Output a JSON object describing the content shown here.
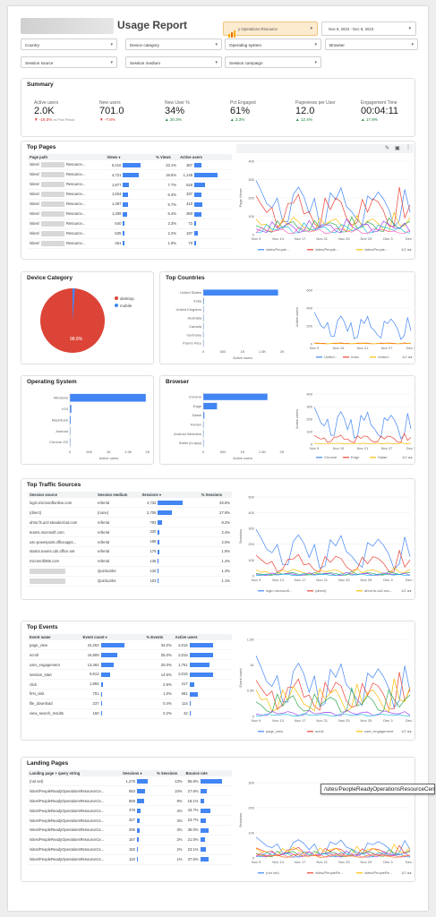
{
  "report": {
    "title": "Usage Report",
    "datasource": "y Operations Resource",
    "date_range": "Nov 9, 2023 - Dec 8, 2023"
  },
  "filters": [
    "Country",
    "Device category",
    "Operating system",
    "Browser",
    "Session source",
    "Session medium",
    "Session campaign"
  ],
  "summary": {
    "title": "Summary",
    "kpis": [
      {
        "label": "Active users",
        "value": "2.0K",
        "delta": "-16.5%",
        "dir": "down",
        "note": "vs Prior Period"
      },
      {
        "label": "New users",
        "value": "701.0",
        "delta": "-7.8%",
        "dir": "down"
      },
      {
        "label": "New User %",
        "value": "34%",
        "delta": "20.3%",
        "dir": "up"
      },
      {
        "label": "Pct Engaged",
        "value": "61%",
        "delta": "3.3%",
        "dir": "up"
      },
      {
        "label": "Pageviews per User",
        "value": "12.0",
        "delta": "12.4%",
        "dir": "up"
      },
      {
        "label": "Engagement Time",
        "value": "00:04:11",
        "delta": "17.9%",
        "dir": "up"
      }
    ]
  },
  "colors": {
    "blue": "#4285f4",
    "red": "#ea4335",
    "yellow": "#fbbc04",
    "green": "#34a853",
    "purple": "#a142f4",
    "teal": "#24c1e0",
    "pink": "#ff63b8",
    "orange": "#fa7b17",
    "pie_red": "#db4437"
  },
  "top_pages": {
    "title": "Top Pages",
    "headers": [
      "Page path",
      "Views",
      "% Views",
      "Active users"
    ],
    "rows": [
      [
        "/sites/",
        "Resource...",
        "5,410",
        "23.1%",
        "367"
      ],
      [
        "/sites/",
        "Resource...",
        "4,721",
        "19.5%",
        "1,145"
      ],
      [
        "/sites/",
        "Resource...",
        "1,877",
        "7.7%",
        "526"
      ],
      [
        "/sites/",
        "Resource...",
        "1,504",
        "6.3%",
        "337"
      ],
      [
        "/sites/",
        "Resource...",
        "1,387",
        "5.7%",
        "410"
      ],
      [
        "/sites/",
        "Resource...",
        "1,309",
        "5.4%",
        "360"
      ],
      [
        "/sites/",
        "Resource...",
        "540",
        "2.3%",
        "72"
      ],
      [
        "/sites/",
        "Resource...",
        "535",
        "2.2%",
        "187"
      ],
      [
        "/sites/",
        "Resource...",
        "451",
        "1.9%",
        "70"
      ]
    ],
    "legend": [
      "/sites/People...",
      "/sites/People...",
      "/sites/People..."
    ],
    "ylabel": "Page Views"
  },
  "x_dates": [
    "Nov 9",
    "Nov 13",
    "Nov 17",
    "Nov 21",
    "Nov 25",
    "Nov 29",
    "Dec 3",
    "Dec 7"
  ],
  "x_dates2": [
    "Nov 9",
    "Nov 15",
    "Nov 21",
    "Nov 27",
    "Dec 3"
  ],
  "page_indicator": "1/2",
  "device": {
    "title": "Device Category",
    "legend": [
      "desktop",
      "mobile"
    ],
    "pct": "98.8%"
  },
  "countries": {
    "title": "Top Countries",
    "items": [
      "United States",
      "India",
      "United Kingdom",
      "Australia",
      "Canada",
      "Germany",
      "Puerto Rico"
    ],
    "ticks": [
      "0",
      "500",
      "1K",
      "1.5K",
      "2K"
    ],
    "xlabel": "Active users",
    "ylabel": "Active users",
    "legend": [
      "United...",
      "India",
      "United..."
    ]
  },
  "os": {
    "title": "Operating System",
    "items": [
      "Windows",
      "iOS",
      "Macintosh",
      "Android",
      "Chrome OS"
    ],
    "ticks": [
      "0",
      "500",
      "1K",
      "1.5K",
      "2K"
    ],
    "xlabel": "Active users"
  },
  "browser": {
    "title": "Browser",
    "items": [
      "Chrome",
      "Edge",
      "Safari",
      "Firefox",
      "Android Webview",
      "Safari (in-app)"
    ],
    "ticks": [
      "0",
      "500",
      "1K",
      "1.5K",
      "2K"
    ],
    "xlabel": "Active users",
    "ylabel": "Active users",
    "legend": [
      "Chrome",
      "Edge",
      "Safari"
    ]
  },
  "traffic": {
    "title": "Top Traffic Sources",
    "headers": [
      "Session source",
      "Session medium",
      "Sessions",
      "% Sessions"
    ],
    "rows": [
      [
        "login.microsoftonline.com",
        "referral",
        "4,732",
        "46.8%"
      ],
      [
        "(direct)",
        "(none)",
        "2,706",
        "27.9%"
      ],
      [
        "ahmr.fs.az2.steadoclout.com",
        "referral",
        "793",
        "8.2%"
      ],
      [
        "teams.microsoft.com",
        "referral",
        "230",
        "2.4%"
      ],
      [
        "usc-powerpoint.officeapps...",
        "referral",
        "198",
        "2.0%"
      ],
      [
        "statics.teams.cdn.office.net",
        "referral",
        "175",
        "1.8%"
      ],
      [
        "microsoft365.com",
        "referral",
        "136",
        "1.4%"
      ],
      [
        "",
        "QuickLinks",
        "130",
        "1.3%"
      ],
      [
        "",
        "QuickLinks",
        "103",
        "1.1%"
      ]
    ],
    "ylabel": "Sessions",
    "legend": [
      "login.microsoft...",
      "(direct)",
      "ahmr.fs.us2.ora..."
    ]
  },
  "events": {
    "title": "Top Events",
    "headers": [
      "Event name",
      "Event count",
      "% Events",
      "Active users"
    ],
    "rows": [
      [
        "page_view",
        "24,263",
        "34.0%",
        "2,015"
      ],
      [
        "scroll",
        "16,809",
        "25.0%",
        "2,015"
      ],
      [
        "user_engagement",
        "13,462",
        "20.0%",
        "1,751"
      ],
      [
        "session_start",
        "9,813",
        "14.6%",
        "2,015"
      ],
      [
        "click",
        "1,994",
        "2.9%",
        "417"
      ],
      [
        "first_visit",
        "701",
        "1.0%",
        "691"
      ],
      [
        "file_download",
        "237",
        "0.4%",
        "114"
      ],
      [
        "view_search_results",
        "150",
        "0.2%",
        "42"
      ]
    ],
    "ylabel": "Event count",
    "legend": [
      "page_view",
      "scroll",
      "user_engagement"
    ]
  },
  "landing": {
    "title": "Landing Pages",
    "headers": [
      "Landing page + query string",
      "Sessions",
      "% Sessions",
      "Bounce rate"
    ],
    "rows": [
      [
        "(not set)",
        "1,275",
        "13%",
        "95.8%"
      ],
      [
        "/sites/PeopleReadyOperationsResourceCe...",
        "953",
        "10%",
        "27.6%"
      ],
      [
        "/sites/PeopleReadyOperationsResourceCe...",
        "858",
        "9%",
        "18.1%"
      ],
      [
        "/sites/PeopleReadyOperationsResourceCe...",
        "378",
        "4%",
        "43.7%"
      ],
      [
        "/sites/PeopleReadyOperationsResourceCe...",
        "327",
        "3%",
        "23.7%"
      ],
      [
        "/sites/PeopleReadyOperationsResourceCe...",
        "295",
        "3%",
        "36.0%"
      ],
      [
        "/sites/PeopleReadyOperationsResourceCe...",
        "167",
        "2%",
        "21.0%"
      ],
      [
        "/sites/PeopleReadyOperationsResourceCe...",
        "150",
        "2%",
        "23.1%"
      ],
      [
        "/sites/PeopleReadyOperationsResourceCe...",
        "120",
        "1%",
        "37.5%"
      ]
    ],
    "ylabel": "Sessions",
    "legend": [
      "(not set)",
      "/sites/PeopleRe...",
      "/sites/PeopleRe..."
    ],
    "tooltip": "/sites/PeopleReadyOperationsResourceCen"
  }
}
